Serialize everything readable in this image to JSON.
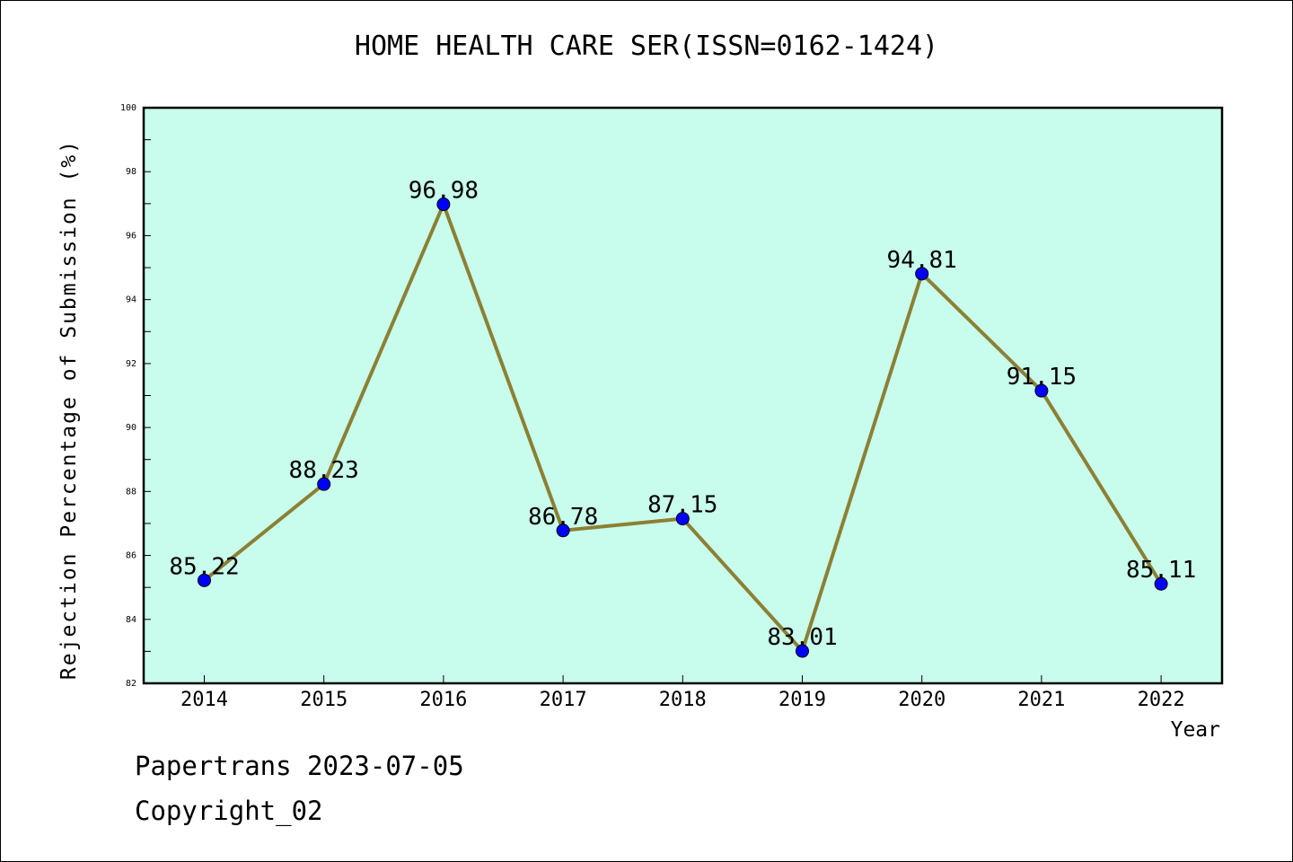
{
  "chart_data": {
    "type": "line",
    "title": "HOME HEALTH CARE SER(ISSN=0162-1424)",
    "xlabel": "Year",
    "ylabel": "Rejection Percentage of Submission (%)",
    "categories": [
      "2014",
      "2015",
      "2016",
      "2017",
      "2018",
      "2019",
      "2020",
      "2021",
      "2022"
    ],
    "values": [
      85.22,
      88.23,
      96.98,
      86.78,
      87.15,
      83.01,
      94.81,
      91.15,
      85.11
    ],
    "data_labels": [
      "85.22",
      "88.23",
      "96.98",
      "86.78",
      "87.15",
      "83.01",
      "94.81",
      "91.15",
      "85.11"
    ],
    "ylim": [
      82,
      100
    ],
    "yticks": [
      82,
      84,
      86,
      88,
      90,
      92,
      94,
      96,
      98,
      100
    ],
    "grid": false,
    "legend": "none",
    "colors": {
      "plot_background": "#c8fcec",
      "line": "#8c8034",
      "marker": "#0000ff"
    }
  },
  "footer": {
    "line1": "Papertrans 2023-07-05",
    "line2": "Copyright_02"
  }
}
